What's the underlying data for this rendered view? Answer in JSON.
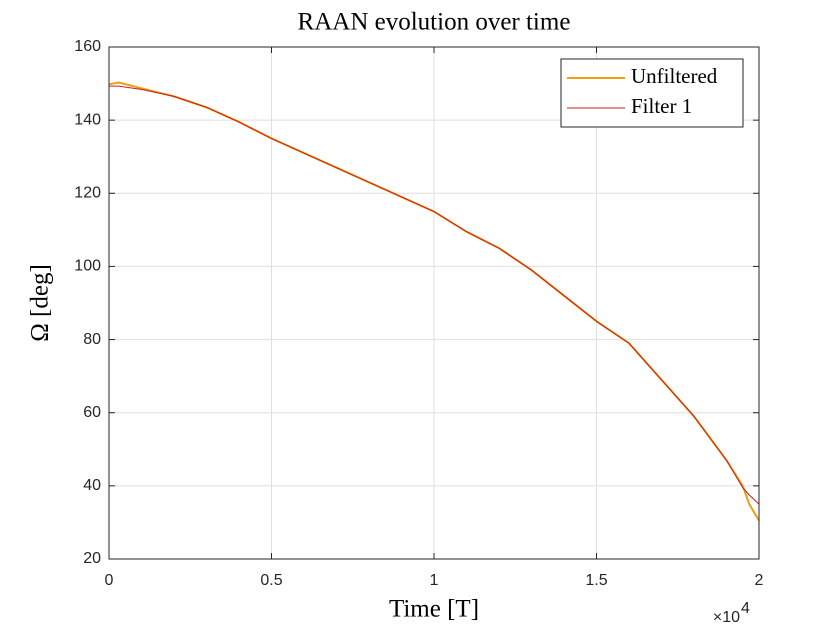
{
  "chart_data": {
    "type": "line",
    "title": "RAAN evolution over time",
    "x_label": "Time [T]",
    "y_label": "Ω [deg]",
    "x_multiplier": {
      "base": "×10",
      "exponent": "4"
    },
    "x": [
      0,
      300,
      1000,
      2000,
      3000,
      4000,
      5000,
      6000,
      7000,
      8000,
      9000,
      10000,
      11000,
      12000,
      13000,
      14000,
      15000,
      16000,
      17000,
      18000,
      19000,
      19500,
      19700,
      20000
    ],
    "series": [
      {
        "name": "Unfiltered",
        "color": "#f39c12",
        "values": [
          149.8,
          150.3,
          148.7,
          146.5,
          143.5,
          139.5,
          135,
          131,
          127,
          123,
          119,
          115,
          109.5,
          105,
          99,
          92,
          85,
          79,
          69,
          59,
          47,
          40,
          35,
          30.5
        ]
      },
      {
        "name": "Filter 1",
        "color": "#c81e1e",
        "values": [
          149.3,
          149.3,
          148.4,
          146.5,
          143.5,
          139.5,
          135,
          131,
          127,
          123,
          119,
          115,
          109.5,
          105,
          99,
          92,
          85,
          79,
          69,
          59,
          47,
          39.5,
          37.5,
          35
        ]
      }
    ],
    "xlim": [
      0,
      20000
    ],
    "ylim": [
      20,
      160
    ],
    "xticks": [
      0,
      {
        "value": 5000,
        "label": "0.5"
      },
      {
        "value": 10000,
        "label": "1"
      },
      {
        "value": 15000,
        "label": "1.5"
      },
      {
        "value": 20000,
        "label": "2"
      }
    ],
    "yticks": [
      20,
      40,
      60,
      80,
      100,
      120,
      140,
      160
    ],
    "grid": true,
    "legend": "northeast"
  }
}
